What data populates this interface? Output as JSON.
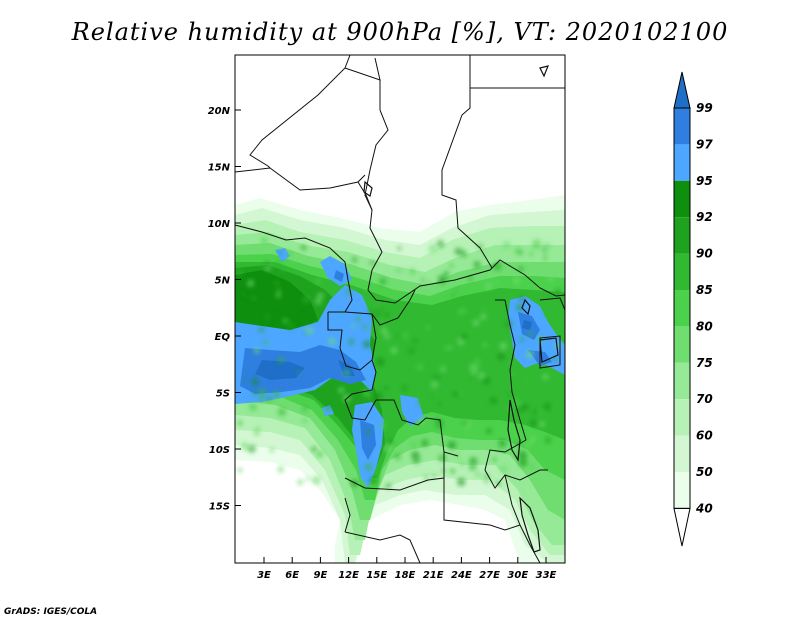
{
  "title": "Relative humidity at 900hPa [%], VT: 2020102100",
  "credit": "GrADS: IGES/COLA",
  "map": {
    "lat_labels": [
      "20N",
      "15N",
      "10N",
      "5N",
      "EQ",
      "5S",
      "10S",
      "15S"
    ],
    "lon_labels": [
      "3E",
      "6E",
      "9E",
      "12E",
      "15E",
      "18E",
      "21E",
      "24E",
      "27E",
      "30E",
      "33E"
    ]
  },
  "colorbar": {
    "labels": [
      "99",
      "97",
      "95",
      "92",
      "90",
      "85",
      "80",
      "75",
      "70",
      "60",
      "50",
      "40"
    ],
    "colors": {
      "above_99": "#1f6fc8",
      "97_99": "#2f7fe0",
      "95_97": "#4da6ff",
      "92_95": "#0e8f0e",
      "90_92": "#1fa31f",
      "85_90": "#32b932",
      "80_85": "#4cd14c",
      "75_80": "#6fdd6f",
      "70_75": "#96e996",
      "60_70": "#b6f1b6",
      "50_60": "#d2f7d2",
      "40_50": "#ebfdeb",
      "below_40": "#ffffff"
    }
  }
}
